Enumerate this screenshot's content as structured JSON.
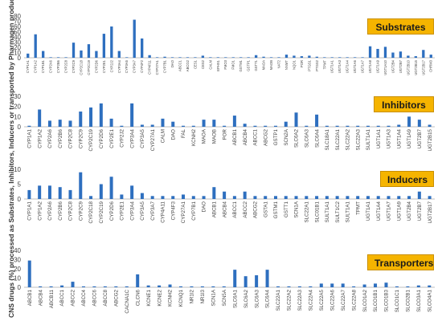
{
  "ylabel": "CNS drugs (%) processed as Substrates, Inhibitors, Inducers or transported by Pharmagen products",
  "colors": {
    "bar": "#2e6fbf",
    "axis": "#bfbfbf",
    "tick_text": "#444444",
    "label_bg": "#f5b400"
  },
  "chart_data": [
    {
      "type": "bar",
      "title": "Substrates",
      "ylim": [
        0,
        80
      ],
      "yticks": [
        0,
        10,
        20,
        30,
        40,
        50,
        60,
        70,
        80
      ],
      "categories": [
        "CYP1A1",
        "CYP1A2",
        "CYP1B1",
        "CYP2A6",
        "CYP2B6",
        "CYP2C8",
        "CYP2C9",
        "CYP2C18",
        "CYP2C19",
        "CYP2D6",
        "CYP2E1",
        "CYP2J2",
        "CYP3A4",
        "CYP3A5",
        "CYP3A7",
        "CYP4F2",
        "CYP4F11",
        "CYP27A1",
        "CYP7B1",
        "DAO",
        "ABCC1",
        "ABCG2",
        "CES1",
        "CES2",
        "CALM",
        "EPHX1",
        "FMO3",
        "FMO1",
        "GSTM1",
        "GSTP1",
        "GSTT1",
        "MAOA",
        "MAOB",
        "NAT2",
        "NNMT",
        "NQO1",
        "POR",
        "PTGS1",
        "PTGS2",
        "TPMT",
        "UGT1A1",
        "UGT1A3",
        "UGT1A4",
        "UGT1A6",
        "UGT1A7",
        "UGT1A8",
        "UGT1A9",
        "UGT1A10",
        "UGT2B4",
        "UGT2B7",
        "UGT2B10",
        "UGT2B15",
        "UGT2B17",
        "CHRM3"
      ],
      "values": [
        8,
        45,
        13,
        1,
        1,
        1,
        29,
        14,
        26,
        13,
        46,
        60,
        13,
        1,
        73,
        37,
        5,
        1,
        2,
        1,
        1,
        1,
        1,
        4,
        1,
        1,
        1,
        1,
        1,
        1,
        5,
        2,
        1,
        1,
        6,
        4,
        3,
        4,
        2,
        1,
        1,
        1,
        1,
        1,
        1,
        22,
        17,
        21,
        10,
        12,
        4,
        3,
        15,
        6
      ]
    },
    {
      "type": "bar",
      "title": "Inhibitors",
      "ylim": [
        0,
        30
      ],
      "yticks": [
        0,
        10,
        20,
        30
      ],
      "categories": [
        "CYP1A1",
        "CYP1A2",
        "CYP2A6",
        "CYP2B6",
        "CYP2C8",
        "CYP2C9",
        "CYP2C19",
        "CYP2D6",
        "CYP2E1",
        "CYP2J2",
        "CYP3A4",
        "CYP3A5",
        "CYP27A1",
        "CALM",
        "DAO",
        "FAL",
        "KCNH2",
        "MAOA",
        "MAOB",
        "POR",
        "ABCB1",
        "ABCB4",
        "ABCC1",
        "ABCG2",
        "GSTP1",
        "SCN2A",
        "SLC6A2",
        "SLC6A3",
        "SLC6A4",
        "SLC18A1",
        "SLC22A1",
        "SLC22A2",
        "SLC22A3",
        "SULT1A1",
        "UGT1A1",
        "UGT1A3",
        "UGT1A4",
        "UGT1A9",
        "UGT2B7",
        "UGT2B15"
      ],
      "values": [
        1,
        17,
        6,
        7,
        6,
        15,
        19,
        23,
        8,
        1,
        23,
        2,
        2,
        8,
        5,
        1,
        1,
        7,
        7,
        1,
        11,
        3,
        1,
        1,
        1,
        5,
        14,
        1,
        12,
        1,
        1,
        1,
        1,
        1,
        1,
        1,
        2,
        10,
        7,
        2
      ]
    },
    {
      "type": "bar",
      "title": "Inducers",
      "ylim": [
        0,
        10
      ],
      "yticks": [
        0,
        5,
        10
      ],
      "categories": [
        "CYP1A1",
        "CYP1A2",
        "CYP2A6",
        "CYP2B6",
        "CYP2C8",
        "CYP2C9",
        "CYP2C18",
        "CYP2C19",
        "CYP2D6",
        "CYP2E1",
        "CYP3A4",
        "CYP3A5",
        "CYP3A7",
        "CYP4A11",
        "CYP4F3",
        "CYP27A1",
        "CYP7B1",
        "DAO",
        "ABCB1",
        "ABCB4",
        "ABCC1",
        "ABCC2",
        "ABCG2",
        "GSTA1",
        "GSTM1",
        "GSTT1",
        "SCN1A",
        "SLC22A1",
        "SLC01B1",
        "SULT1A1",
        "SULT1C2",
        "SULT1A1",
        "TPMT",
        "UGT1A1",
        "UGT1A4",
        "UGT1A7",
        "UGT1A9",
        "UGT2B4",
        "UGT2B7",
        "UGT2B17"
      ],
      "values": [
        3,
        4.5,
        4.5,
        4,
        3,
        9,
        1,
        5,
        7.5,
        1.5,
        4.5,
        2,
        1,
        1,
        1,
        1.5,
        1,
        1,
        4,
        2.5,
        1,
        2.5,
        1,
        1,
        1,
        1,
        1,
        1,
        1,
        1,
        1,
        1,
        1,
        1,
        1,
        1,
        1,
        1,
        2.5,
        1
      ]
    },
    {
      "type": "bar",
      "title": "Transporters",
      "ylim": [
        0,
        40
      ],
      "yticks": [
        0,
        10,
        20,
        30,
        40
      ],
      "categories": [
        "ABCB1",
        "ABCB4",
        "ABCB11",
        "ABCC1",
        "ABCC2",
        "ABCC4",
        "ABCC6",
        "ABCC8",
        "ABCG2",
        "CACNA1C",
        "CLCN6",
        "KCNE1",
        "KCNE2",
        "KCNH2",
        "KCNQ1",
        "NR1I2",
        "NR1I3",
        "SCN1A",
        "SCN5A",
        "SLC6A1",
        "SLC6A2",
        "SLC6A3",
        "SLC6A4",
        "SLC22A1",
        "SLC22A2",
        "SLC22A3",
        "SLC22A4",
        "SLC22A5",
        "SLC22A6",
        "SLC22A7",
        "SLC22A8",
        "SLCO1A2",
        "SLCO1B1",
        "SLCO1B3",
        "SLCO1C1",
        "SLCO2B1",
        "SLCO3A1",
        "SLCO4A1"
      ],
      "values": [
        29,
        1,
        1,
        2,
        6,
        1,
        1,
        1,
        1,
        1,
        14,
        2,
        2,
        3,
        1,
        1,
        1,
        1,
        1,
        19,
        12,
        13,
        19,
        1,
        1,
        1,
        1,
        4,
        4,
        4,
        1,
        3,
        4,
        5,
        1,
        1,
        2,
        2
      ]
    }
  ]
}
